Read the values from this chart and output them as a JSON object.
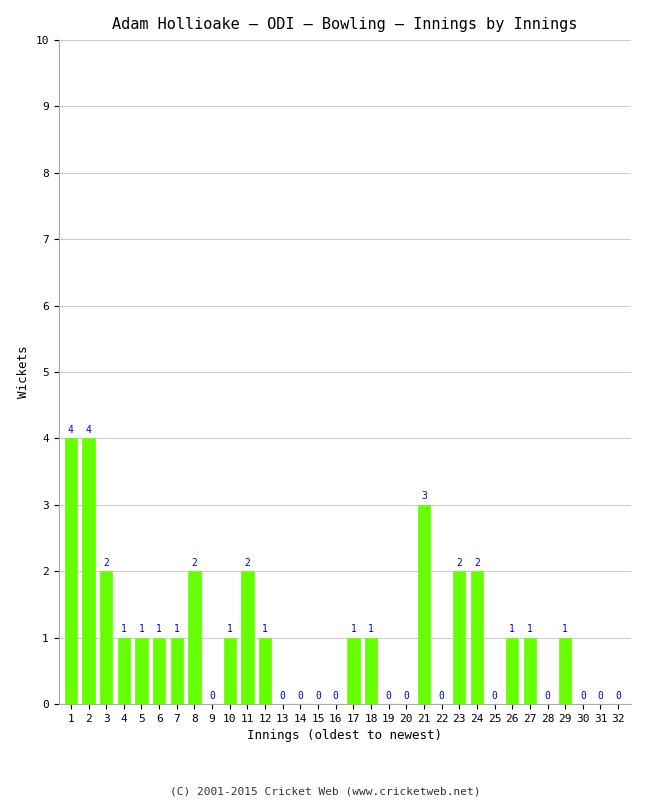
{
  "title": "Adam Hollioake – ODI – Bowling – Innings by Innings",
  "xlabel": "Innings (oldest to newest)",
  "ylabel": "Wickets",
  "x_labels": [
    "1",
    "2",
    "3",
    "4",
    "5",
    "6",
    "7",
    "8",
    "9",
    "10",
    "11",
    "12",
    "13",
    "14",
    "15",
    "16",
    "17",
    "18",
    "19",
    "20",
    "21",
    "22",
    "23",
    "24",
    "25",
    "26",
    "27",
    "28",
    "29",
    "30",
    "31",
    "32"
  ],
  "values": [
    4,
    4,
    2,
    1,
    1,
    1,
    1,
    2,
    0,
    1,
    2,
    1,
    0,
    0,
    0,
    0,
    1,
    1,
    0,
    0,
    3,
    0,
    2,
    2,
    0,
    1,
    1,
    0,
    1,
    0,
    0,
    0
  ],
  "bar_color": "#66ff00",
  "bar_edge_color": "#66ff00",
  "label_color": "#0000cc",
  "title_fontsize": 11,
  "axis_label_fontsize": 9,
  "tick_fontsize": 8,
  "label_fontsize": 7,
  "ylim": [
    0,
    10
  ],
  "yticks": [
    0,
    1,
    2,
    3,
    4,
    5,
    6,
    7,
    8,
    9,
    10
  ],
  "background_color": "#ffffff",
  "grid_color": "#cccccc",
  "footer": "(C) 2001-2015 Cricket Web (www.cricketweb.net)"
}
